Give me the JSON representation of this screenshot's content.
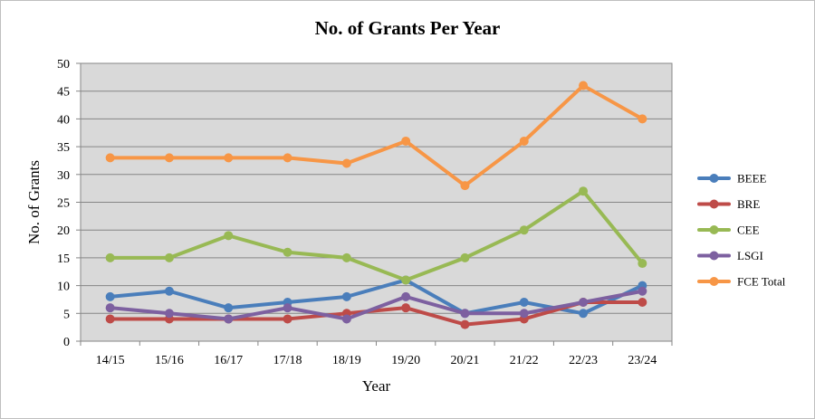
{
  "chart_data": {
    "type": "line",
    "title": "No. of Grants Per Year",
    "xlabel": "Year",
    "ylabel": "No. of Grants",
    "ylim": [
      0,
      50
    ],
    "yticks": [
      0,
      5,
      10,
      15,
      20,
      25,
      30,
      35,
      40,
      45,
      50
    ],
    "grid": "horizontal",
    "legend_position": "right",
    "categories": [
      "14/15",
      "15/16",
      "16/17",
      "17/18",
      "18/19",
      "19/20",
      "20/21",
      "21/22",
      "22/23",
      "23/24"
    ],
    "series": [
      {
        "name": "BEEE",
        "color": "#4a7ebb",
        "values": [
          8,
          9,
          6,
          7,
          8,
          11,
          5,
          7,
          5,
          10
        ]
      },
      {
        "name": "BRE",
        "color": "#be4b48",
        "values": [
          4,
          4,
          4,
          4,
          5,
          6,
          3,
          4,
          7,
          7
        ]
      },
      {
        "name": "CEE",
        "color": "#98b954",
        "values": [
          15,
          15,
          19,
          16,
          15,
          11,
          15,
          20,
          27,
          14
        ]
      },
      {
        "name": "LSGI",
        "color": "#7d60a0",
        "values": [
          6,
          5,
          4,
          6,
          4,
          8,
          5,
          5,
          7,
          9
        ]
      },
      {
        "name": "FCE Total",
        "color": "#f79646",
        "values": [
          33,
          33,
          33,
          33,
          32,
          36,
          28,
          36,
          46,
          40
        ]
      }
    ],
    "plot_background": "#d9d9d9",
    "gridline_color": "#868686"
  }
}
